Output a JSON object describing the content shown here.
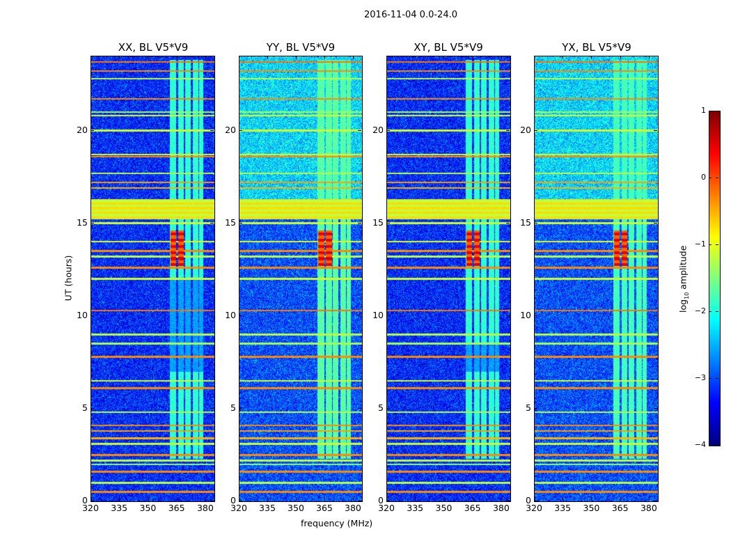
{
  "title": "2016-11-04 0.0-24.0",
  "chart_data": {
    "type": "heatmap",
    "xlabel": "frequency (MHz)",
    "ylabel": "UT (hours)",
    "xlim": [
      320,
      384.4
    ],
    "ylim": [
      0,
      24
    ],
    "xticks": [
      320,
      335,
      350,
      365,
      380
    ],
    "yticks": [
      0,
      5,
      10,
      15,
      20
    ],
    "colormap": "jet",
    "panels": [
      {
        "title": "XX, BL V5*V9",
        "bg_upper": -3.2,
        "bg_lower": -3.2,
        "band_level": -1.9,
        "band_quiet": [
          7.0,
          12.0
        ]
      },
      {
        "title": "YY, BL V5*V9",
        "bg_upper": -2.3,
        "bg_lower": -3.0,
        "band_level": -1.7,
        "band_quiet": []
      },
      {
        "title": "XY, BL V5*V9",
        "bg_upper": -3.2,
        "bg_lower": -3.2,
        "band_level": -1.9,
        "band_quiet": [
          7.0,
          8.5
        ]
      },
      {
        "title": "YX, BL V5*V9",
        "bg_upper": -2.3,
        "bg_lower": -3.0,
        "band_level": -1.8,
        "band_quiet": []
      }
    ],
    "band_channels_mhz": [
      [
        361,
        364.5
      ],
      [
        365.5,
        368.5
      ],
      [
        369,
        372
      ],
      [
        373,
        376
      ],
      [
        376.5,
        378.5
      ]
    ],
    "band_ut_range": [
      2.3,
      23.8
    ],
    "hotspot": {
      "ut_range": [
        12.7,
        14.6
      ],
      "channels_mhz": [
        [
          361.5,
          364.5
        ],
        [
          365.5,
          368.5
        ]
      ],
      "level": 0.5
    },
    "rfi_block": {
      "ut_range": [
        15.2,
        16.3
      ],
      "levels": [
        -0.7,
        -1.2
      ]
    },
    "rfi_lines": [
      {
        "ut": 23.7,
        "level": -0.2
      },
      {
        "ut": 23.2,
        "level": -0.3
      },
      {
        "ut": 22.8,
        "level": -1.2
      },
      {
        "ut": 21.7,
        "level": -0.3
      },
      {
        "ut": 21.0,
        "level": -1.3
      },
      {
        "ut": 20.8,
        "level": -1.0
      },
      {
        "ut": 20.0,
        "level": -1.1
      },
      {
        "ut": 18.7,
        "level": -1.0
      },
      {
        "ut": 18.6,
        "level": -0.3
      },
      {
        "ut": 17.7,
        "level": -1.2
      },
      {
        "ut": 17.2,
        "level": -0.4
      },
      {
        "ut": 16.9,
        "level": -0.5
      },
      {
        "ut": 15.0,
        "level": -1.1
      },
      {
        "ut": 14.0,
        "level": -1.0
      },
      {
        "ut": 13.5,
        "level": -0.3
      },
      {
        "ut": 13.2,
        "level": -1.2
      },
      {
        "ut": 12.6,
        "level": -0.3
      },
      {
        "ut": 12.0,
        "level": -1.1
      },
      {
        "ut": 10.3,
        "level": -0.2
      },
      {
        "ut": 9.0,
        "level": -1.2
      },
      {
        "ut": 8.5,
        "level": -1.3
      },
      {
        "ut": 7.8,
        "level": -0.3
      },
      {
        "ut": 6.5,
        "level": -1.1
      },
      {
        "ut": 6.1,
        "level": -0.3
      },
      {
        "ut": 4.8,
        "level": -1.2
      },
      {
        "ut": 4.1,
        "level": -0.3
      },
      {
        "ut": 3.8,
        "level": -0.4
      },
      {
        "ut": 3.4,
        "level": -0.5
      },
      {
        "ut": 3.1,
        "level": -1.1
      },
      {
        "ut": 2.5,
        "level": -0.3
      },
      {
        "ut": 2.2,
        "level": -1.2
      },
      {
        "ut": 2.0,
        "level": -1.4
      },
      {
        "ut": 1.6,
        "level": -0.3
      },
      {
        "ut": 1.0,
        "level": -1.2
      },
      {
        "ut": 0.5,
        "level": -0.3
      }
    ],
    "colorbar": {
      "label_prefix": "log",
      "label_sub": "10",
      "label_suffix": " amplitude",
      "range": [
        -4,
        1
      ],
      "ticks": [
        -4,
        -3,
        -2,
        -1,
        0,
        1
      ]
    }
  }
}
